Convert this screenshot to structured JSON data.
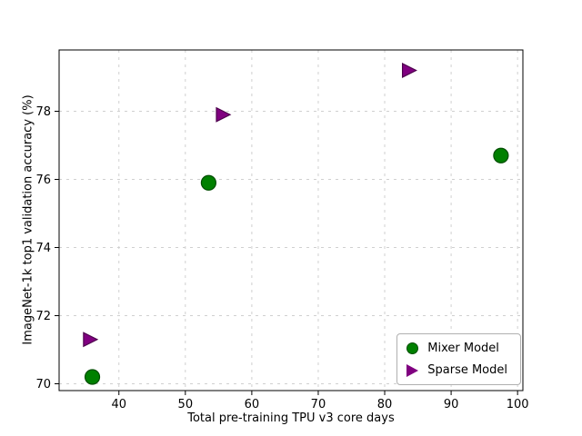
{
  "chart_data": {
    "type": "scatter",
    "title": "",
    "xlabel": "Total pre-training TPU v3 core days",
    "ylabel": "ImageNet-1k top1 validation accuracy (%)",
    "xlim": [
      31,
      100.8
    ],
    "ylim": [
      69.8,
      79.8
    ],
    "x_ticks": [
      40,
      50,
      60,
      70,
      80,
      90,
      100
    ],
    "y_ticks": [
      70,
      72,
      74,
      76,
      78
    ],
    "grid": true,
    "grid_style": "dashed",
    "legend_position": "lower right",
    "series": [
      {
        "name": "Mixer Model",
        "marker": "circle",
        "color": "#008000",
        "edge_color": "#004d00",
        "points": [
          [
            36,
            70.2
          ],
          [
            53.5,
            75.9
          ],
          [
            97.5,
            76.7
          ]
        ]
      },
      {
        "name": "Sparse Model",
        "marker": "triangle-right",
        "color": "#800080",
        "edge_color": "#4d004d",
        "points": [
          [
            35.5,
            71.3
          ],
          [
            55.5,
            77.9
          ],
          [
            83.5,
            79.2
          ]
        ]
      }
    ]
  }
}
